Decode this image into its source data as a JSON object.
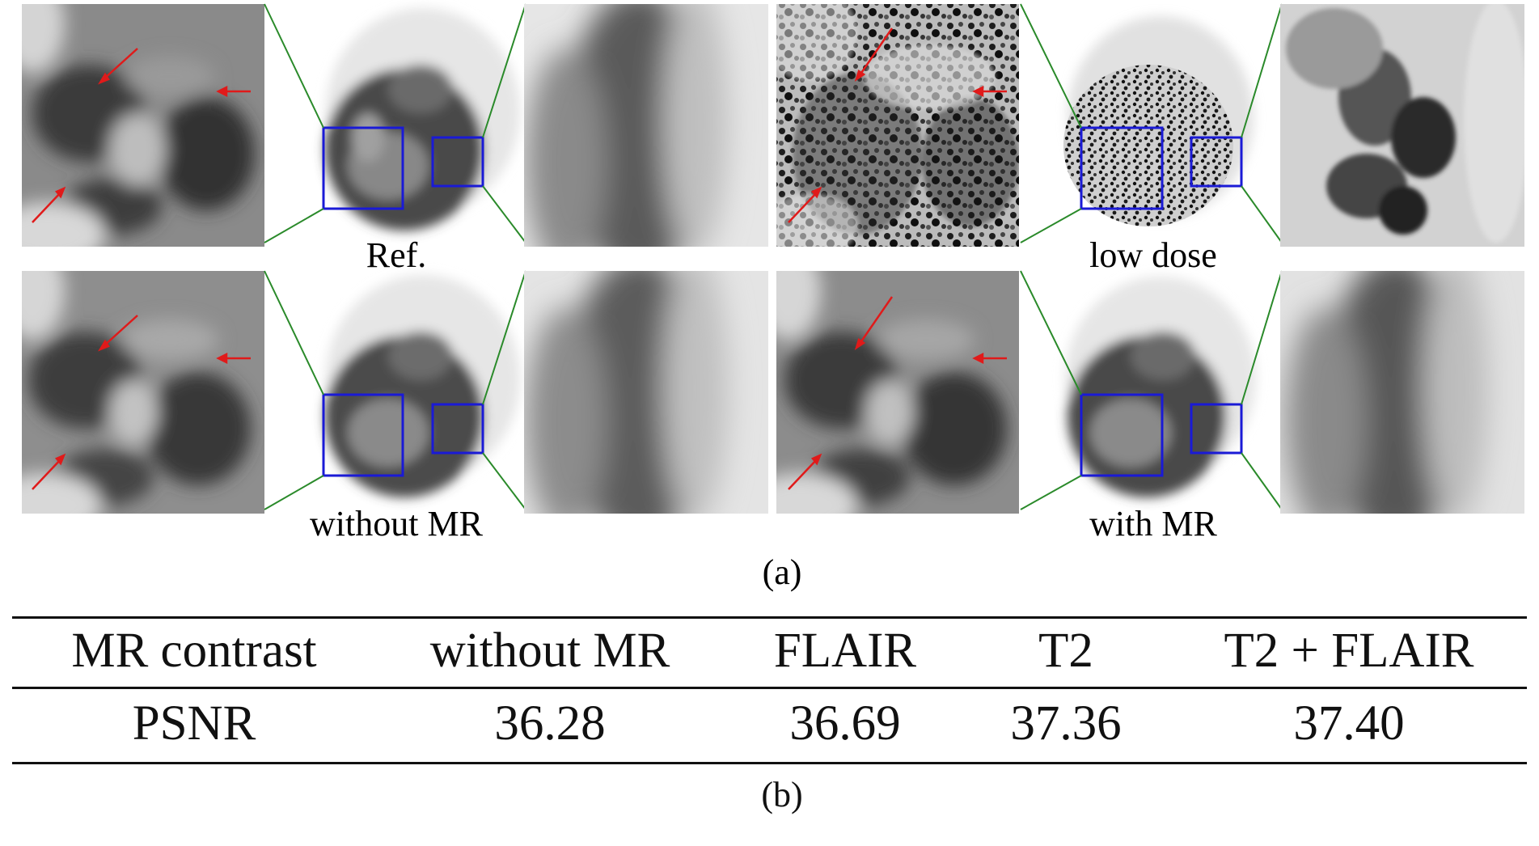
{
  "figure_a": {
    "subcaption": "(a)",
    "panels": [
      {
        "label": "Ref."
      },
      {
        "label": "low dose"
      },
      {
        "label": "without MR"
      },
      {
        "label": "with MR"
      }
    ]
  },
  "table": {
    "header": [
      "MR contrast",
      "without MR",
      "FLAIR",
      "T2",
      "T2 + FLAIR"
    ],
    "rows": [
      [
        "PSNR",
        "36.28",
        "36.69",
        "37.36",
        "37.40"
      ]
    ]
  },
  "figure_b": {
    "subcaption": "(b)"
  },
  "colors": {
    "roi_box": "#1a1ad6",
    "connector": "#2a8a2a",
    "arrow": "#e01a1a"
  }
}
